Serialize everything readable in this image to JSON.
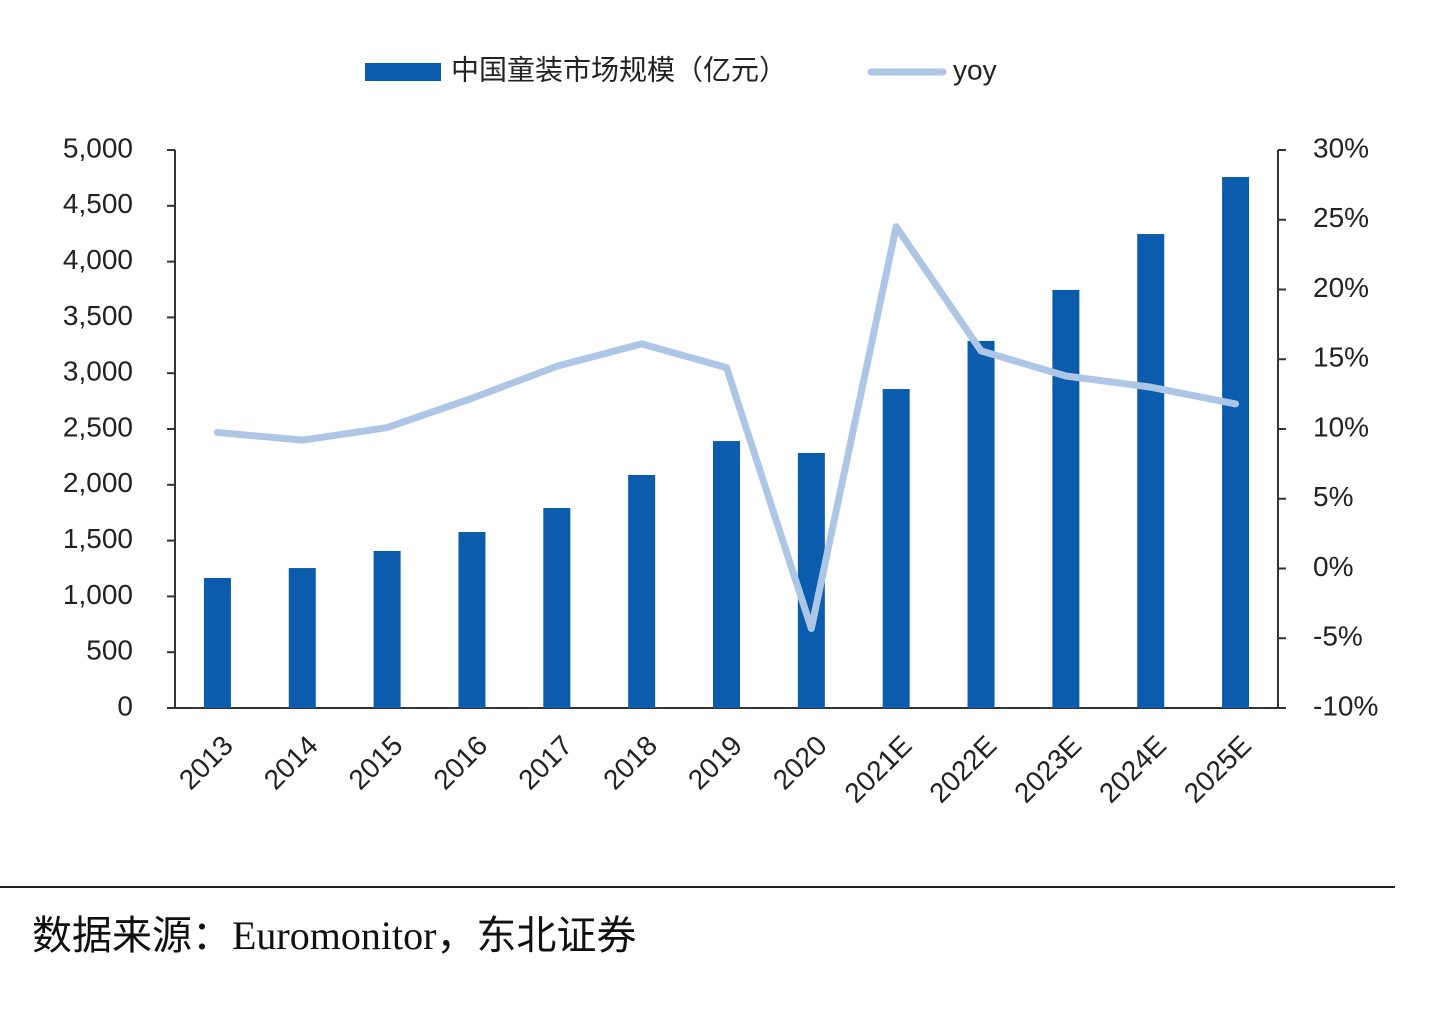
{
  "chart_data": {
    "type": "bar_line",
    "categories": [
      "2013",
      "2014",
      "2015",
      "2016",
      "2017",
      "2018",
      "2019",
      "2020",
      "2021E",
      "2022E",
      "2023E",
      "2024E",
      "2025E"
    ],
    "series": [
      {
        "name": "中国童装市场规模（亿元）",
        "type": "bar",
        "color": "#0b5cad",
        "values": [
          1165,
          1254,
          1407,
          1577,
          1792,
          2088,
          2392,
          2285,
          2858,
          3289,
          3746,
          4247,
          4758
        ]
      },
      {
        "name": "yoy",
        "type": "line",
        "axis": "y2",
        "color": "#adc6e5",
        "values": [
          9.75,
          9.2,
          10.1,
          12.2,
          14.5,
          16.1,
          14.4,
          -4.3,
          24.5,
          15.6,
          13.8,
          13.0,
          11.8
        ]
      }
    ],
    "ylim": [
      0,
      5000
    ],
    "yticks": [
      0,
      500,
      {
        "value": 1000,
        "label": "1,000"
      },
      {
        "value": 1500,
        "label": "1,500"
      },
      {
        "value": 2000,
        "label": "2,000"
      },
      {
        "value": 2500,
        "label": "2,500"
      },
      {
        "value": 3000,
        "label": "3,000"
      },
      {
        "value": 3500,
        "label": "3,500"
      },
      {
        "value": 4000,
        "label": "4,000"
      },
      {
        "value": 4500,
        "label": "4,500"
      },
      {
        "value": 5000,
        "label": "5,000"
      }
    ],
    "y2lim": [
      -10,
      30
    ],
    "y2ticks": [
      {
        "value": -10,
        "label": "-10%"
      },
      {
        "value": -5,
        "label": "-5%"
      },
      {
        "value": 0,
        "label": "0%"
      },
      {
        "value": 5,
        "label": "5%"
      },
      {
        "value": 10,
        "label": "10%"
      },
      {
        "value": 15,
        "label": "15%"
      },
      {
        "value": 20,
        "label": "20%"
      },
      {
        "value": 25,
        "label": "25%"
      },
      {
        "value": 30,
        "label": "30%"
      }
    ],
    "grid": false,
    "legend": "top",
    "source": "数据来源：Euromonitor，东北证券"
  }
}
